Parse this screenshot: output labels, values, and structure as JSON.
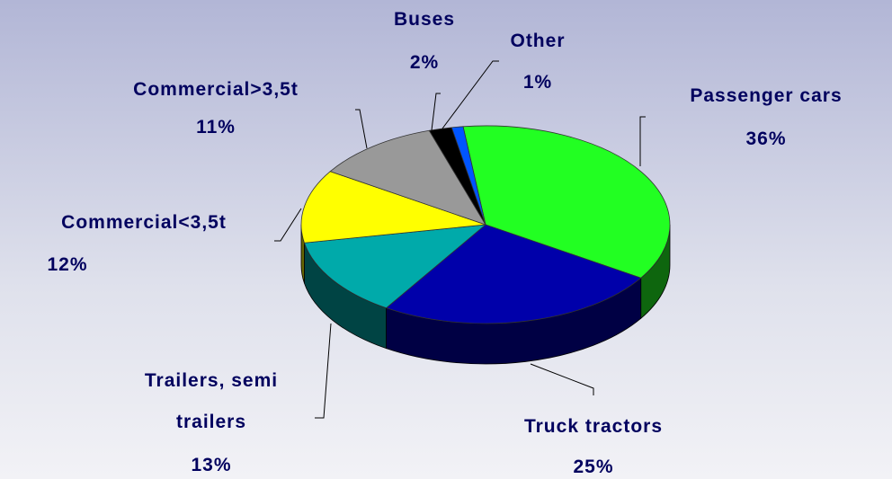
{
  "chart_data": {
    "type": "pie3d",
    "categories": [
      "Passenger cars",
      "Truck tractors",
      "Trailers, semi trailers",
      "Commercial<3,5t",
      "Commercial>3,5t",
      "Buses",
      "Other"
    ],
    "values": [
      36,
      25,
      13,
      12,
      11,
      2,
      1
    ],
    "value_labels": [
      "36%",
      "25%",
      "13%",
      "12%",
      "11%",
      "2%",
      "1%"
    ],
    "colors": [
      "#22ff22",
      "#0000aa",
      "#00aaaa",
      "#ffff00",
      "#999999",
      "#000000",
      "#0055ff"
    ]
  }
}
